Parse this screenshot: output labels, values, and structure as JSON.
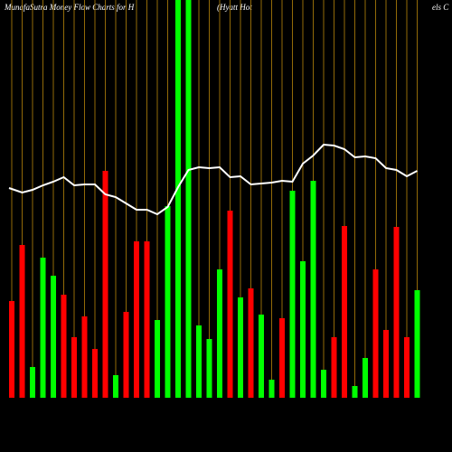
{
  "chart_data": {
    "type": "bar",
    "title_parts": [
      "MunafaSutra  Money Flow  Charts for H",
      "(Hyatt Hot",
      "els C"
    ],
    "categories": [
      null,
      null,
      null,
      null,
      null,
      null,
      null,
      null,
      null,
      null,
      null,
      null,
      null,
      null,
      null,
      null,
      null,
      null,
      null,
      null,
      null,
      null,
      null,
      null,
      null,
      null,
      null,
      null,
      null,
      null,
      null,
      null,
      null,
      null,
      null,
      null,
      null,
      null,
      null,
      null
    ],
    "values": [
      107,
      169,
      34,
      155,
      135,
      114,
      67,
      90,
      54,
      251,
      25,
      95,
      173,
      173,
      86,
      212,
      440,
      440,
      80,
      65,
      142,
      207,
      111,
      121,
      92,
      20,
      88,
      229,
      151,
      240,
      31,
      67,
      190,
      13,
      44,
      142,
      75,
      189,
      67,
      119
    ],
    "colors": [
      "#ff0000",
      "#ff0000",
      "#00ff00",
      "#00ff00",
      "#00ff00",
      "#ff0000",
      "#ff0000",
      "#ff0000",
      "#ff0000",
      "#ff0000",
      "#00ff00",
      "#ff0000",
      "#ff0000",
      "#ff0000",
      "#00ff00",
      "#00ff00",
      "#00ff00",
      "#00ff00",
      "#00ff00",
      "#00ff00",
      "#00ff00",
      "#ff0000",
      "#00ff00",
      "#ff0000",
      "#00ff00",
      "#00ff00",
      "#ff0000",
      "#00ff00",
      "#00ff00",
      "#00ff00",
      "#00ff00",
      "#ff0000",
      "#ff0000",
      "#00ff00",
      "#00ff00",
      "#ff0000",
      "#ff0000",
      "#ff0000",
      "#ff0000",
      "#00ff00"
    ],
    "line": {
      "color": "#ffffff",
      "values": [
        232,
        227,
        230,
        235,
        239,
        244,
        235,
        236,
        236,
        225,
        222,
        215,
        208,
        208,
        203,
        211,
        233,
        252,
        255,
        254,
        255,
        244,
        245,
        236,
        237,
        238,
        240,
        239,
        259,
        268,
        280,
        279,
        275,
        266,
        267,
        265,
        254,
        252,
        245,
        251
      ]
    },
    "ylim": [
      0,
      440
    ],
    "grid_color": "#b8860b"
  }
}
